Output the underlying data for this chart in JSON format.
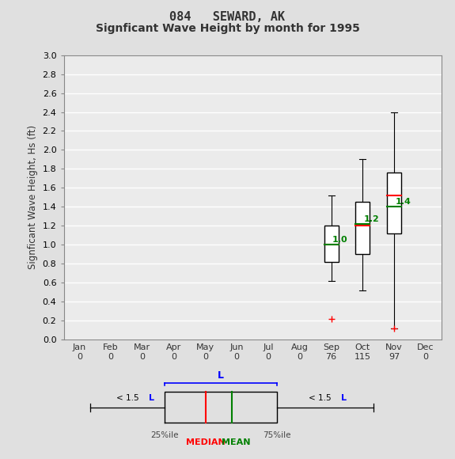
{
  "title_line1": "084   SEWARD, AK",
  "title_line2": "Signficant Wave Height by month for 1995",
  "ylabel": "Signficant Wave Height, Hs (ft)",
  "months": [
    "Jan",
    "Feb",
    "Mar",
    "Apr",
    "May",
    "Jun",
    "Jul",
    "Aug",
    "Sep",
    "Oct",
    "Nov",
    "Dec"
  ],
  "counts": [
    0,
    0,
    0,
    0,
    0,
    0,
    0,
    0,
    76,
    115,
    97,
    0
  ],
  "ylim": [
    0.0,
    3.0
  ],
  "yticks": [
    0.0,
    0.2,
    0.4,
    0.6,
    0.8,
    1.0,
    1.2,
    1.4,
    1.6,
    1.8,
    2.0,
    2.2,
    2.4,
    2.6,
    2.8,
    3.0
  ],
  "boxes": [
    {
      "month_idx": 8,
      "q1": 0.82,
      "median": 1.0,
      "mean": 1.0,
      "q3": 1.2,
      "whisker_low": 0.62,
      "whisker_high": 1.52,
      "flier_low": 0.22,
      "flier_high": null
    },
    {
      "month_idx": 9,
      "q1": 0.9,
      "median": 1.2,
      "mean": 1.22,
      "q3": 1.45,
      "whisker_low": 0.52,
      "whisker_high": 1.9,
      "flier_low": null,
      "flier_high": null
    },
    {
      "month_idx": 10,
      "q1": 1.12,
      "median": 1.52,
      "mean": 1.4,
      "q3": 1.76,
      "whisker_low": 0.12,
      "whisker_high": 2.4,
      "flier_low": 0.12,
      "flier_high": null
    }
  ],
  "box_color": "#ffffff",
  "box_edge_color": "#000000",
  "median_color": "#ff0000",
  "mean_color": "#008000",
  "whisker_color": "#000000",
  "flier_color": "#ff0000",
  "bg_color": "#e0e0e0",
  "plot_bg_color": "#ebebeb",
  "grid_color": "#ffffff"
}
